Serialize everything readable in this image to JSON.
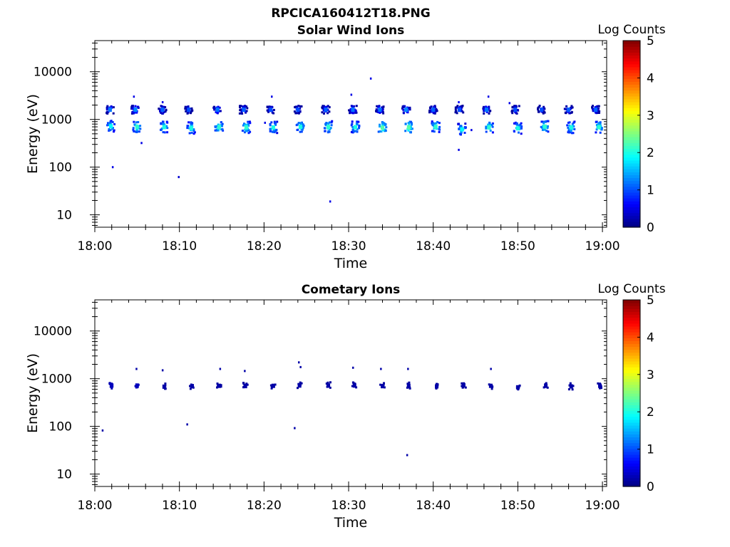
{
  "figure": {
    "title": "RPCICA160412T18.PNG"
  },
  "chart_data": [
    {
      "type": "heatmap",
      "title": "Solar Wind Ions",
      "xlabel": "Time",
      "ylabel": "Energy (eV)",
      "x_ticks": [
        "18:00",
        "18:10",
        "18:20",
        "18:30",
        "18:40",
        "18:50",
        "19:00"
      ],
      "xlim_minutes": [
        0,
        60.5
      ],
      "y_scale": "log",
      "y_ticks": [
        10,
        100,
        1000,
        10000
      ],
      "y_tick_labels": [
        "10",
        "100",
        "1000",
        "10000"
      ],
      "ylim": [
        5.5,
        45000
      ],
      "colorbar": {
        "label": "Log Counts",
        "range": [
          0,
          5
        ],
        "ticks": [
          "0",
          "1",
          "2",
          "3",
          "4",
          "5"
        ],
        "colormap": "jet"
      },
      "grid": false,
      "blobs": [
        {
          "t": 1.8,
          "e": 1600,
          "lc": 1.2
        },
        {
          "t": 1.9,
          "e": 720,
          "lc": 1.9
        },
        {
          "t": 4.8,
          "e": 1600,
          "lc": 1.3
        },
        {
          "t": 5.0,
          "e": 700,
          "lc": 2.1
        },
        {
          "t": 8.0,
          "e": 1600,
          "lc": 1.1
        },
        {
          "t": 8.2,
          "e": 690,
          "lc": 2.0
        },
        {
          "t": 11.1,
          "e": 1600,
          "lc": 1.0
        },
        {
          "t": 11.4,
          "e": 660,
          "lc": 2.0
        },
        {
          "t": 14.5,
          "e": 1600,
          "lc": 1.2
        },
        {
          "t": 14.7,
          "e": 690,
          "lc": 2.1
        },
        {
          "t": 17.6,
          "e": 1600,
          "lc": 1.1
        },
        {
          "t": 17.9,
          "e": 680,
          "lc": 2.1
        },
        {
          "t": 20.8,
          "e": 1600,
          "lc": 1.0
        },
        {
          "t": 21.1,
          "e": 680,
          "lc": 2.0
        },
        {
          "t": 24.0,
          "e": 1600,
          "lc": 1.0
        },
        {
          "t": 24.3,
          "e": 700,
          "lc": 2.0
        },
        {
          "t": 27.3,
          "e": 1600,
          "lc": 1.1
        },
        {
          "t": 27.6,
          "e": 700,
          "lc": 2.1
        },
        {
          "t": 30.5,
          "e": 1600,
          "lc": 1.2
        },
        {
          "t": 30.8,
          "e": 690,
          "lc": 2.0
        },
        {
          "t": 33.7,
          "e": 1600,
          "lc": 1.2
        },
        {
          "t": 34.0,
          "e": 670,
          "lc": 2.3
        },
        {
          "t": 36.8,
          "e": 1600,
          "lc": 1.3
        },
        {
          "t": 37.1,
          "e": 680,
          "lc": 2.3
        },
        {
          "t": 40.0,
          "e": 1600,
          "lc": 1.1
        },
        {
          "t": 40.3,
          "e": 700,
          "lc": 2.1
        },
        {
          "t": 43.1,
          "e": 1600,
          "lc": 1.0
        },
        {
          "t": 43.4,
          "e": 620,
          "lc": 1.9
        },
        {
          "t": 46.3,
          "e": 1600,
          "lc": 1.2
        },
        {
          "t": 46.6,
          "e": 680,
          "lc": 2.1
        },
        {
          "t": 49.7,
          "e": 1600,
          "lc": 1.0
        },
        {
          "t": 50.0,
          "e": 650,
          "lc": 2.0
        },
        {
          "t": 52.8,
          "e": 1600,
          "lc": 1.0
        },
        {
          "t": 53.2,
          "e": 710,
          "lc": 2.1
        },
        {
          "t": 56.0,
          "e": 1600,
          "lc": 1.1
        },
        {
          "t": 56.3,
          "e": 680,
          "lc": 2.0
        },
        {
          "t": 59.2,
          "e": 1600,
          "lc": 1.1
        },
        {
          "t": 59.6,
          "e": 690,
          "lc": 2.1
        }
      ],
      "points": [
        {
          "t": 2.1,
          "e": 100,
          "lc": 0.5
        },
        {
          "t": 4.6,
          "e": 3000,
          "lc": 0.5
        },
        {
          "t": 5.5,
          "e": 320,
          "lc": 0.5
        },
        {
          "t": 8.0,
          "e": 2300,
          "lc": 0.5
        },
        {
          "t": 9.9,
          "e": 62,
          "lc": 0.4
        },
        {
          "t": 20.9,
          "e": 3000,
          "lc": 0.5
        },
        {
          "t": 27.8,
          "e": 19,
          "lc": 0.5
        },
        {
          "t": 30.3,
          "e": 3300,
          "lc": 0.5
        },
        {
          "t": 32.6,
          "e": 7200,
          "lc": 0.5
        },
        {
          "t": 43.0,
          "e": 2300,
          "lc": 0.6
        },
        {
          "t": 43.0,
          "e": 230,
          "lc": 0.5
        },
        {
          "t": 44.5,
          "e": 600,
          "lc": 0.5
        },
        {
          "t": 46.5,
          "e": 3000,
          "lc": 0.5
        },
        {
          "t": 49.0,
          "e": 2200,
          "lc": 0.5
        },
        {
          "t": 20.1,
          "e": 850,
          "lc": 0.5
        }
      ]
    },
    {
      "type": "heatmap",
      "title": "Cometary Ions",
      "xlabel": "Time",
      "ylabel": "Energy (eV)",
      "x_ticks": [
        "18:00",
        "18:10",
        "18:20",
        "18:30",
        "18:40",
        "18:50",
        "19:00"
      ],
      "xlim_minutes": [
        0,
        60.5
      ],
      "y_scale": "log",
      "y_ticks": [
        10,
        100,
        1000,
        10000
      ],
      "y_tick_labels": [
        "10",
        "100",
        "1000",
        "10000"
      ],
      "ylim": [
        5.5,
        45000
      ],
      "colorbar": {
        "label": "Log Counts",
        "range": [
          0,
          5
        ],
        "ticks": [
          "0",
          "1",
          "2",
          "3",
          "4",
          "5"
        ],
        "colormap": "jet"
      },
      "grid": false,
      "blobs": [
        {
          "t": 2.0,
          "e": 720,
          "lc": 0.3
        },
        {
          "t": 5.0,
          "e": 720,
          "lc": 0.3
        },
        {
          "t": 8.2,
          "e": 680,
          "lc": 0.2
        },
        {
          "t": 11.5,
          "e": 700,
          "lc": 0.2
        },
        {
          "t": 14.7,
          "e": 710,
          "lc": 0.2
        },
        {
          "t": 17.8,
          "e": 700,
          "lc": 0.2
        },
        {
          "t": 21.1,
          "e": 710,
          "lc": 0.2
        },
        {
          "t": 24.2,
          "e": 720,
          "lc": 0.2
        },
        {
          "t": 27.6,
          "e": 720,
          "lc": 0.2
        },
        {
          "t": 30.7,
          "e": 720,
          "lc": 0.2
        },
        {
          "t": 34.0,
          "e": 700,
          "lc": 0.2
        },
        {
          "t": 37.1,
          "e": 710,
          "lc": 0.2
        },
        {
          "t": 40.4,
          "e": 690,
          "lc": 0.2
        },
        {
          "t": 43.6,
          "e": 730,
          "lc": 0.2
        },
        {
          "t": 46.8,
          "e": 710,
          "lc": 0.2
        },
        {
          "t": 50.0,
          "e": 660,
          "lc": 0.2
        },
        {
          "t": 53.3,
          "e": 710,
          "lc": 0.2
        },
        {
          "t": 56.3,
          "e": 690,
          "lc": 0.2
        },
        {
          "t": 59.7,
          "e": 710,
          "lc": 0.2
        }
      ],
      "points": [
        {
          "t": 0.9,
          "e": 82,
          "lc": 0.2
        },
        {
          "t": 4.9,
          "e": 1600,
          "lc": 0.2
        },
        {
          "t": 8.0,
          "e": 1500,
          "lc": 0.2
        },
        {
          "t": 10.9,
          "e": 110,
          "lc": 0.2
        },
        {
          "t": 14.8,
          "e": 1600,
          "lc": 0.2
        },
        {
          "t": 17.7,
          "e": 1450,
          "lc": 0.2
        },
        {
          "t": 23.6,
          "e": 92,
          "lc": 0.2
        },
        {
          "t": 24.1,
          "e": 2200,
          "lc": 0.2
        },
        {
          "t": 24.3,
          "e": 1750,
          "lc": 0.2
        },
        {
          "t": 30.5,
          "e": 1700,
          "lc": 0.2
        },
        {
          "t": 33.8,
          "e": 1600,
          "lc": 0.2
        },
        {
          "t": 36.9,
          "e": 25,
          "lc": 0.2
        },
        {
          "t": 37.0,
          "e": 1600,
          "lc": 0.2
        },
        {
          "t": 46.8,
          "e": 1600,
          "lc": 0.2
        }
      ]
    }
  ]
}
